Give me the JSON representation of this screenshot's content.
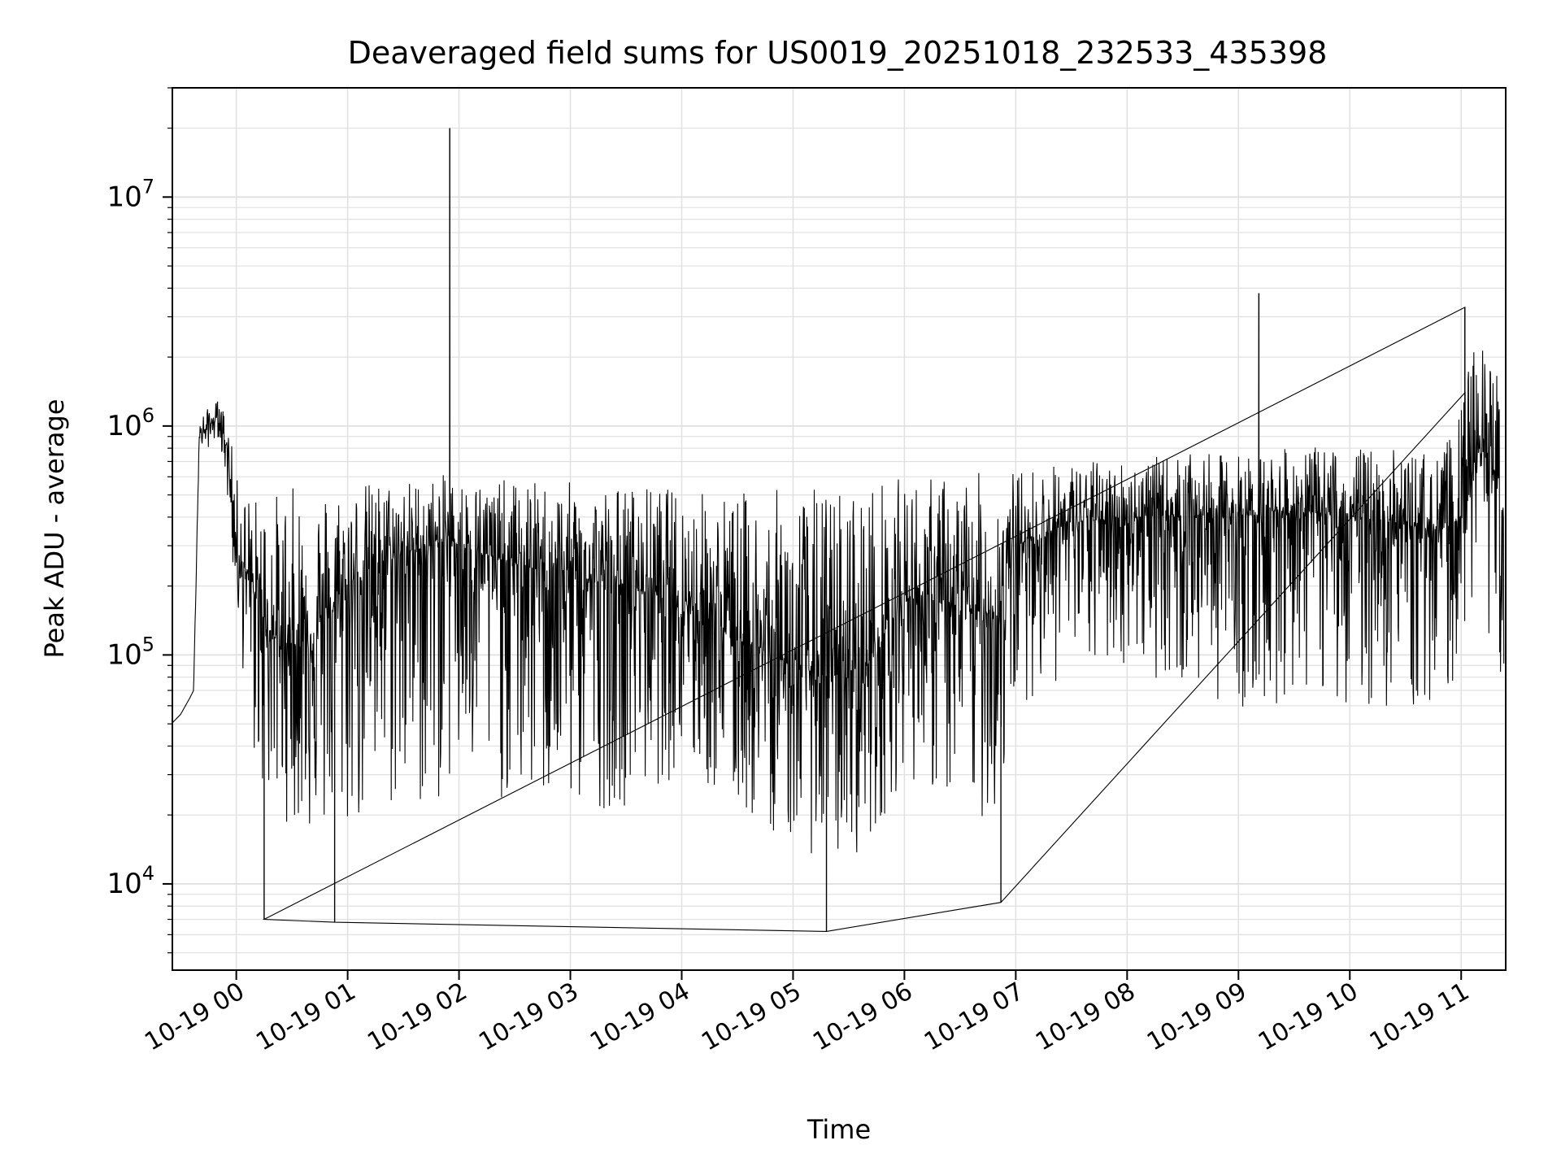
{
  "chart_data": {
    "type": "line",
    "title": "Deaveraged field sums for US0019_20251018_232533_435398",
    "xlabel": "Time",
    "ylabel": "Peak ADU - average",
    "yscale": "log",
    "ylim": [
      4200,
      30000000
    ],
    "xlim": [
      "2025-10-18 23:25:33",
      "2025-10-19 11:24:00"
    ],
    "grid": true,
    "legend": "none",
    "line_color": "#000000",
    "grid_color": "#e0e0e0",
    "x_tick_labels": [
      {
        "t": "2025-10-19 00:00",
        "label": "10-19 00"
      },
      {
        "t": "2025-10-19 01:00",
        "label": "10-19 01"
      },
      {
        "t": "2025-10-19 02:00",
        "label": "10-19 02"
      },
      {
        "t": "2025-10-19 03:00",
        "label": "10-19 03"
      },
      {
        "t": "2025-10-19 04:00",
        "label": "10-19 04"
      },
      {
        "t": "2025-10-19 05:00",
        "label": "10-19 05"
      },
      {
        "t": "2025-10-19 06:00",
        "label": "10-19 06"
      },
      {
        "t": "2025-10-19 07:00",
        "label": "10-19 07"
      },
      {
        "t": "2025-10-19 08:00",
        "label": "10-19 08"
      },
      {
        "t": "2025-10-19 09:00",
        "label": "10-19 09"
      },
      {
        "t": "2025-10-19 10:00",
        "label": "10-19 10"
      },
      {
        "t": "2025-10-19 11:00",
        "label": "10-19 11"
      }
    ],
    "y_tick_labels": [
      {
        "v": 10000,
        "base": "10",
        "exp": "4"
      },
      {
        "v": 100000,
        "base": "10",
        "exp": "5"
      },
      {
        "v": 1000000,
        "base": "10",
        "exp": "6"
      },
      {
        "v": 10000000,
        "base": "10",
        "exp": "7"
      }
    ],
    "series": [
      {
        "x": [
          "2025-10-18 23:25",
          "2025-10-18 23:30",
          "2025-10-18 23:35",
          "2025-10-18 23:37",
          "2025-10-18 23:40",
          "2025-10-18 23:45",
          "2025-10-18 23:50",
          "2025-10-18 23:53",
          "2025-10-18 23:56",
          "2025-10-19 00:00",
          "2025-10-19 00:10",
          "2025-10-19 00:20",
          "2025-10-19 00:30",
          "2025-10-19 00:40",
          "2025-10-19 00:50",
          "2025-10-19 01:00",
          "2025-10-19 01:15",
          "2025-10-19 01:30",
          "2025-10-19 01:45",
          "2025-10-19 01:55",
          "2025-10-19 02:00",
          "2025-10-19 02:30",
          "2025-10-19 03:00",
          "2025-10-19 03:30",
          "2025-10-19 04:00",
          "2025-10-19 04:30",
          "2025-10-19 05:00",
          "2025-10-19 05:20",
          "2025-10-19 05:40",
          "2025-10-19 06:00",
          "2025-10-19 06:30",
          "2025-10-19 06:50",
          "2025-10-19 07:00",
          "2025-10-19 07:30",
          "2025-10-19 08:00",
          "2025-10-19 08:30",
          "2025-10-19 09:00",
          "2025-10-19 09:12",
          "2025-10-19 09:30",
          "2025-10-19 10:00",
          "2025-10-19 10:30",
          "2025-10-19 10:50",
          "2025-10-19 11:00",
          "2025-10-19 11:05",
          "2025-10-19 11:10",
          "2025-10-19 11:15",
          "2025-10-19 11:20",
          "2025-10-19 11:23"
        ],
        "y_mid": [
          50000,
          55000,
          65000,
          70000,
          900000,
          1000000,
          1100000,
          950000,
          700000,
          300000,
          180000,
          120000,
          110000,
          120000,
          150000,
          200000,
          250000,
          280000,
          300000,
          330000,
          300000,
          250000,
          220000,
          200000,
          180000,
          120000,
          90000,
          80000,
          90000,
          180000,
          160000,
          150000,
          300000,
          380000,
          400000,
          410000,
          400000,
          420000,
          430000,
          400000,
          370000,
          350000,
          400000,
          600000,
          800000,
          700000,
          600000,
          300000
        ],
        "y_low": [
          50000,
          55000,
          65000,
          70000,
          800000,
          800000,
          900000,
          700000,
          400000,
          150000,
          30000,
          20000,
          18000,
          16000,
          15000,
          16000,
          18000,
          20000,
          20000,
          25000,
          25000,
          22000,
          20000,
          22000,
          30000,
          20000,
          15000,
          12000,
          14000,
          30000,
          20000,
          18000,
          60000,
          80000,
          90000,
          70000,
          60000,
          50000,
          70000,
          60000,
          55000,
          55000,
          100000,
          150000,
          200000,
          120000,
          100000,
          50000
        ],
        "y_high": [
          50000,
          55000,
          65000,
          70000,
          1100000,
          1200000,
          1300000,
          1200000,
          1000000,
          600000,
          500000,
          520000,
          550000,
          560000,
          570000,
          570000,
          580000,
          590000,
          600000,
          620000,
          600000,
          580000,
          570000,
          560000,
          540000,
          520000,
          540000,
          560000,
          590000,
          600000,
          620000,
          640000,
          650000,
          700000,
          720000,
          750000,
          760000,
          780000,
          800000,
          820000,
          790000,
          780000,
          1200000,
          2000000,
          2600000,
          2000000,
          1800000,
          800000
        ],
        "spikes": [
          {
            "x": "2025-10-19 01:55",
            "y": 20000000
          },
          {
            "x": "2025-10-19 09:11",
            "y": 3800000
          },
          {
            "x": "2025-10-19 11:02",
            "y": 3300000
          },
          {
            "x": "2025-10-19 00:15",
            "y": 7000
          },
          {
            "x": "2025-10-19 00:53",
            "y": 6800
          },
          {
            "x": "2025-10-19 05:18",
            "y": 6200
          },
          {
            "x": "2025-10-19 06:52",
            "y": 8300
          }
        ]
      }
    ]
  }
}
